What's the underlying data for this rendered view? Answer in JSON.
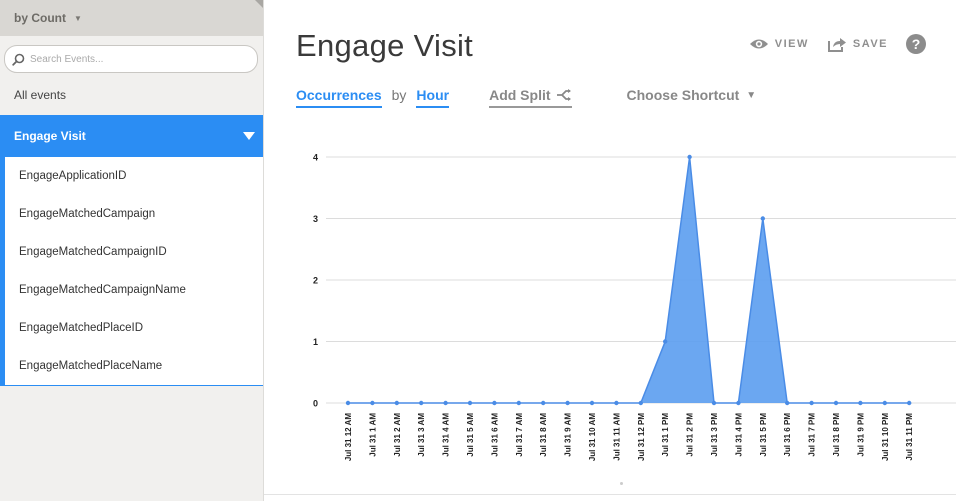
{
  "sidebar": {
    "sort_label": "by Count",
    "search_placeholder": "Search Events...",
    "all_events_label": "All events",
    "selected_event": "Engage Visit",
    "properties": [
      "EngageApplicationID",
      "EngageMatchedCampaign",
      "EngageMatchedCampaignID",
      "EngageMatchedCampaignName",
      "EngageMatchedPlaceID",
      "EngageMatchedPlaceName"
    ]
  },
  "header": {
    "title": "Engage Visit",
    "view_label": "VIEW",
    "save_label": "SAVE",
    "help_label": "?"
  },
  "controls": {
    "metric_label": "Occurrences",
    "by_label": "by",
    "interval_label": "Hour",
    "add_split_label": "Add Split",
    "shortcut_label": "Choose Shortcut"
  },
  "colors": {
    "accent": "#2b8df3",
    "fill": "#5b9def",
    "line": "#4a8ce6"
  },
  "chart_data": {
    "type": "area",
    "categories": [
      "Jul 31 12 AM",
      "Jul 31 1 AM",
      "Jul 31 2 AM",
      "Jul 31 3 AM",
      "Jul 31 4 AM",
      "Jul 31 5 AM",
      "Jul 31 6 AM",
      "Jul 31 7 AM",
      "Jul 31 8 AM",
      "Jul 31 9 AM",
      "Jul 31 10 AM",
      "Jul 31 11 AM",
      "Jul 31 12 PM",
      "Jul 31 1 PM",
      "Jul 31 2 PM",
      "Jul 31 3 PM",
      "Jul 31 4 PM",
      "Jul 31 5 PM",
      "Jul 31 6 PM",
      "Jul 31 7 PM",
      "Jul 31 8 PM",
      "Jul 31 9 PM",
      "Jul 31 10 PM",
      "Jul 31 11 PM"
    ],
    "values": [
      0,
      0,
      0,
      0,
      0,
      0,
      0,
      0,
      0,
      0,
      0,
      0,
      0,
      1,
      4,
      0,
      0,
      3,
      0,
      0,
      0,
      0,
      0,
      0
    ],
    "yticks": [
      0,
      1,
      2,
      3,
      4
    ],
    "ylim": [
      0,
      4
    ],
    "grid": true
  }
}
